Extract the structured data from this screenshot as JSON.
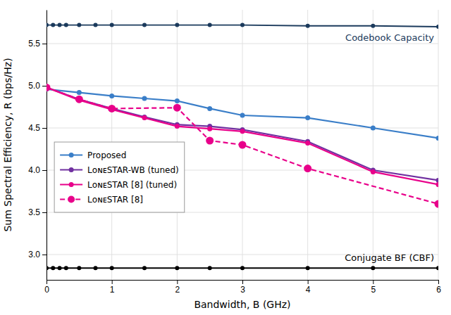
{
  "chart_data": {
    "type": "line",
    "xlabel": "Bandwidth, B (GHz)",
    "ylabel": "Sum Spectral Efficiency, R (bps/Hz)",
    "xlim": [
      0,
      6
    ],
    "ylim": [
      2.7,
      5.9
    ],
    "xticks": [
      0,
      1,
      2,
      3,
      4,
      5,
      6
    ],
    "yticks": [
      {
        "value": 3.0,
        "label": "3.0"
      },
      3.5,
      {
        "value": 4.0,
        "label": "4.0"
      },
      4.5,
      {
        "value": 5.0,
        "label": "5.0"
      },
      5.5
    ],
    "grid": true,
    "legend": "lower left",
    "series": [
      {
        "color": "#1b3a5c",
        "marker": "circle",
        "line_style": "solid",
        "x": [
          0,
          0.1,
          0.2,
          0.3,
          0.5,
          0.75,
          1.0,
          1.5,
          2.0,
          2.5,
          3.0,
          4.0,
          5.0,
          6.0
        ],
        "values": [
          5.72,
          5.72,
          5.72,
          5.72,
          5.72,
          5.72,
          5.72,
          5.72,
          5.72,
          5.72,
          5.72,
          5.71,
          5.71,
          5.7
        ]
      },
      {
        "color": "#000000",
        "marker": "circle",
        "line_style": "solid",
        "x": [
          0,
          0.1,
          0.2,
          0.3,
          0.5,
          0.75,
          1.0,
          1.5,
          2.0,
          2.5,
          3.0,
          4.0,
          5.0,
          6.0
        ],
        "values": [
          2.84,
          2.84,
          2.84,
          2.84,
          2.84,
          2.84,
          2.84,
          2.84,
          2.84,
          2.84,
          2.84,
          2.84,
          2.84,
          2.84
        ]
      },
      {
        "name": "Proposed",
        "color": "#3a7ec8",
        "marker": "circle",
        "line_style": "solid",
        "x": [
          0,
          0.5,
          1.0,
          1.5,
          2.0,
          2.5,
          3.0,
          4.0,
          5.0,
          6.0
        ],
        "values": [
          4.96,
          4.92,
          4.88,
          4.85,
          4.82,
          4.73,
          4.65,
          4.62,
          4.5,
          4.38
        ]
      },
      {
        "name": "LᴏɴᴇSTAR-WB (tuned)",
        "color": "#7030a0",
        "marker": "circle",
        "line_style": "solid",
        "x": [
          0,
          0.5,
          1.0,
          1.5,
          2.0,
          2.5,
          3.0,
          4.0,
          5.0,
          6.0
        ],
        "values": [
          4.98,
          4.84,
          4.73,
          4.63,
          4.54,
          4.52,
          4.48,
          4.34,
          4.0,
          3.88
        ]
      },
      {
        "name": "LᴏɴᴇSTAR [8] (tuned)",
        "color": "#e8008a",
        "marker": "circle",
        "line_style": "solid",
        "x": [
          0,
          0.5,
          1.0,
          1.5,
          2.0,
          2.5,
          3.0,
          4.0,
          5.0,
          6.0
        ],
        "values": [
          4.98,
          4.83,
          4.72,
          4.62,
          4.52,
          4.49,
          4.46,
          4.32,
          3.98,
          3.83
        ]
      },
      {
        "name": "LᴏɴᴇSTAR [8]",
        "color": "#e8008a",
        "marker": "circle",
        "line_style": "dashed",
        "x": [
          0,
          0.5,
          1.0,
          2.0,
          2.5,
          3.0,
          4.0,
          6.0
        ],
        "values": [
          4.98,
          4.84,
          4.73,
          4.74,
          4.35,
          4.3,
          4.02,
          3.6
        ]
      }
    ],
    "annotations": [
      {
        "text": "Codebook Capacity"
      },
      {
        "text": "Conjugate BF (CBF)"
      }
    ]
  }
}
